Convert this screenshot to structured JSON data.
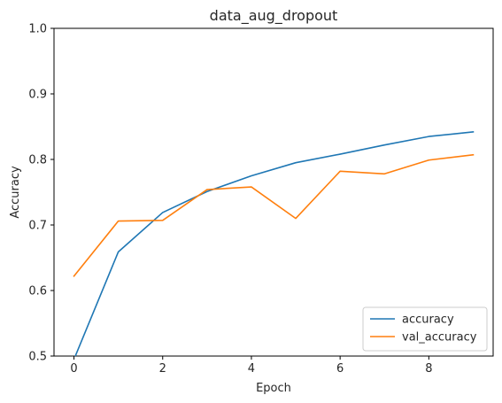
{
  "chart_data": {
    "type": "line",
    "title": "data_aug_dropout",
    "xlabel": "Epoch",
    "ylabel": "Accuracy",
    "xlim": [
      -0.45,
      9.45
    ],
    "ylim": [
      0.5,
      1.0
    ],
    "xticks": [
      0,
      2,
      4,
      6,
      8
    ],
    "yticks": [
      0.5,
      0.6,
      0.7,
      0.8,
      0.9,
      1.0
    ],
    "xtick_labels": [
      "0",
      "2",
      "4",
      "6",
      "8"
    ],
    "ytick_labels": [
      "0.5",
      "0.6",
      "0.7",
      "0.8",
      "0.9",
      "1.0"
    ],
    "x": [
      0,
      1,
      2,
      3,
      4,
      5,
      6,
      7,
      8,
      9
    ],
    "grid": false,
    "legend_position": "lower-right",
    "series": [
      {
        "name": "accuracy",
        "color": "#1f77b4",
        "values": [
          0.495,
          0.659,
          0.719,
          0.751,
          0.775,
          0.795,
          0.808,
          0.822,
          0.835,
          0.842
        ]
      },
      {
        "name": "val_accuracy",
        "color": "#ff7f0e",
        "values": [
          0.622,
          0.706,
          0.707,
          0.754,
          0.758,
          0.71,
          0.782,
          0.778,
          0.799,
          0.807
        ]
      }
    ]
  }
}
